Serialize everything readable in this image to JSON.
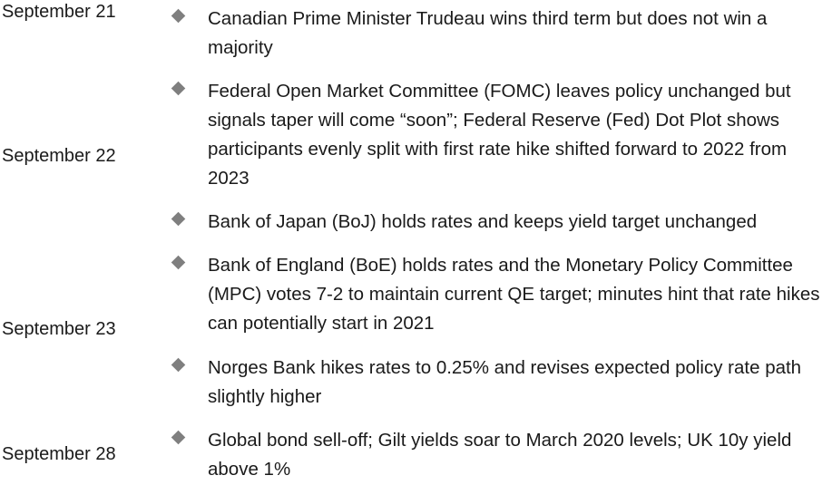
{
  "timeline": [
    {
      "date": "September 21",
      "items": [
        "Canadian Prime Minister Trudeau wins third term but does not win a majority"
      ]
    },
    {
      "date": "September 22",
      "items": [
        "Federal Open Market Committee (FOMC) leaves policy unchanged but signals taper will come “soon”; Federal Reserve (Fed) Dot Plot shows participants evenly split with first rate hike shifted forward to 2022 from 2023",
        "Bank of Japan (BoJ) holds rates and keeps yield target unchanged"
      ]
    },
    {
      "date": "September 23",
      "items": [
        "Bank of England (BoE) holds rates and the Monetary Policy Committee (MPC) votes 7-2 to maintain current QE target; minutes hint that rate hikes can potentially start in 2021",
        "Norges Bank hikes rates to 0.25% and revises expected policy rate path slightly higher"
      ]
    },
    {
      "date": "September 28",
      "items": [
        "Global bond sell-off; Gilt yields soar to March 2020 levels; UK 10y yield above 1%"
      ]
    }
  ],
  "bullet_color": "#7f7f7f",
  "bullet_icon": "diamond-bullet-icon"
}
